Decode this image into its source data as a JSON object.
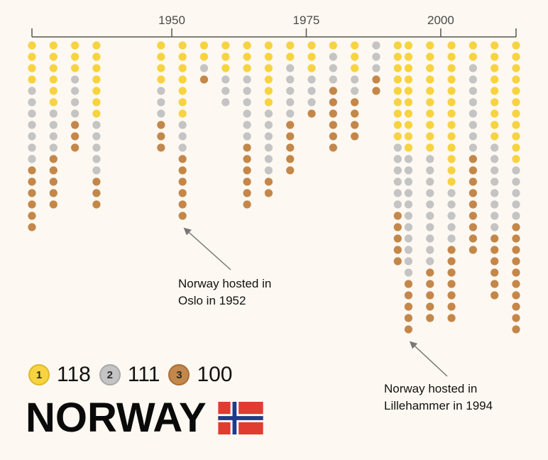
{
  "country": "NORWAY",
  "colors": {
    "gold": "#f7d342",
    "silver": "#c4c4c4",
    "bronze": "#c4874a",
    "axis": "#555555"
  },
  "legend": [
    {
      "rank": "1",
      "count": "118",
      "color": "#f7d342"
    },
    {
      "rank": "2",
      "count": "111",
      "color": "#c4c4c4"
    },
    {
      "rank": "3",
      "count": "100",
      "color": "#c4874a"
    }
  ],
  "annotations": [
    {
      "line1": "Norway hosted in",
      "line2": "Oslo in 1952",
      "year": 1952
    },
    {
      "line1": "Norway hosted in",
      "line2": "Lillehammer in 1994",
      "year": 1994
    }
  ],
  "chart_data": {
    "type": "scatter",
    "subtype": "stacked-medal-dots",
    "x_ticks": [
      "1950",
      "1975",
      "2000"
    ],
    "x_tick_values": [
      1950,
      1975,
      2000
    ],
    "xlim": [
      1924,
      2014
    ],
    "series_order": [
      "gold",
      "silver",
      "bronze"
    ],
    "games": [
      {
        "year": 1924,
        "gold": 4,
        "silver": 7,
        "bronze": 6
      },
      {
        "year": 1928,
        "gold": 6,
        "silver": 4,
        "bronze": 5
      },
      {
        "year": 1932,
        "gold": 3,
        "silver": 4,
        "bronze": 3
      },
      {
        "year": 1936,
        "gold": 7,
        "silver": 5,
        "bronze": 3
      },
      {
        "year": 1948,
        "gold": 4,
        "silver": 3,
        "bronze": 3
      },
      {
        "year": 1952,
        "gold": 7,
        "silver": 3,
        "bronze": 6
      },
      {
        "year": 1956,
        "gold": 2,
        "silver": 1,
        "bronze": 1
      },
      {
        "year": 1960,
        "gold": 3,
        "silver": 3,
        "bronze": 0
      },
      {
        "year": 1964,
        "gold": 3,
        "silver": 6,
        "bronze": 6
      },
      {
        "year": 1968,
        "gold": 6,
        "silver": 6,
        "bronze": 2
      },
      {
        "year": 1972,
        "gold": 2,
        "silver": 5,
        "bronze": 5
      },
      {
        "year": 1976,
        "gold": 3,
        "silver": 3,
        "bronze": 1
      },
      {
        "year": 1980,
        "gold": 1,
        "silver": 3,
        "bronze": 6
      },
      {
        "year": 1984,
        "gold": 3,
        "silver": 2,
        "bronze": 4
      },
      {
        "year": 1988,
        "gold": 0,
        "silver": 3,
        "bronze": 2
      },
      {
        "year": 1992,
        "gold": 9,
        "silver": 6,
        "bronze": 5
      },
      {
        "year": 1994,
        "gold": 10,
        "silver": 11,
        "bronze": 5
      },
      {
        "year": 1998,
        "gold": 10,
        "silver": 10,
        "bronze": 5
      },
      {
        "year": 2002,
        "gold": 13,
        "silver": 5,
        "bronze": 7
      },
      {
        "year": 2006,
        "gold": 2,
        "silver": 8,
        "bronze": 9
      },
      {
        "year": 2010,
        "gold": 9,
        "silver": 8,
        "bronze": 6
      },
      {
        "year": 2014,
        "gold": 11,
        "silver": 5,
        "bronze": 10
      }
    ]
  }
}
